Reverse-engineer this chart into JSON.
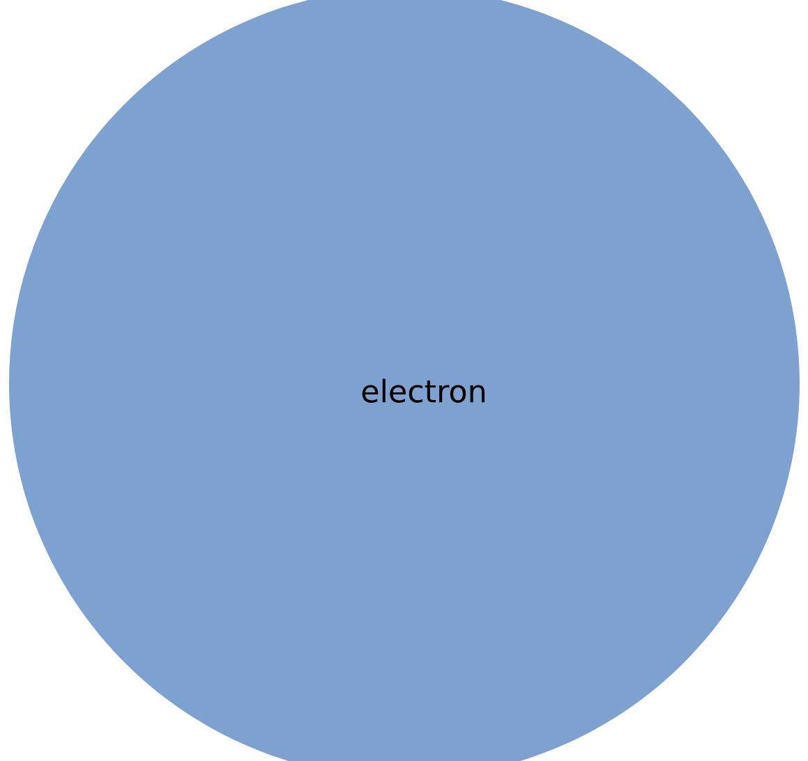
{
  "chart_data": {
    "type": "pie",
    "categories": [
      "electron"
    ],
    "values": [
      100
    ],
    "colors": [
      "#7fa1d0"
    ]
  }
}
